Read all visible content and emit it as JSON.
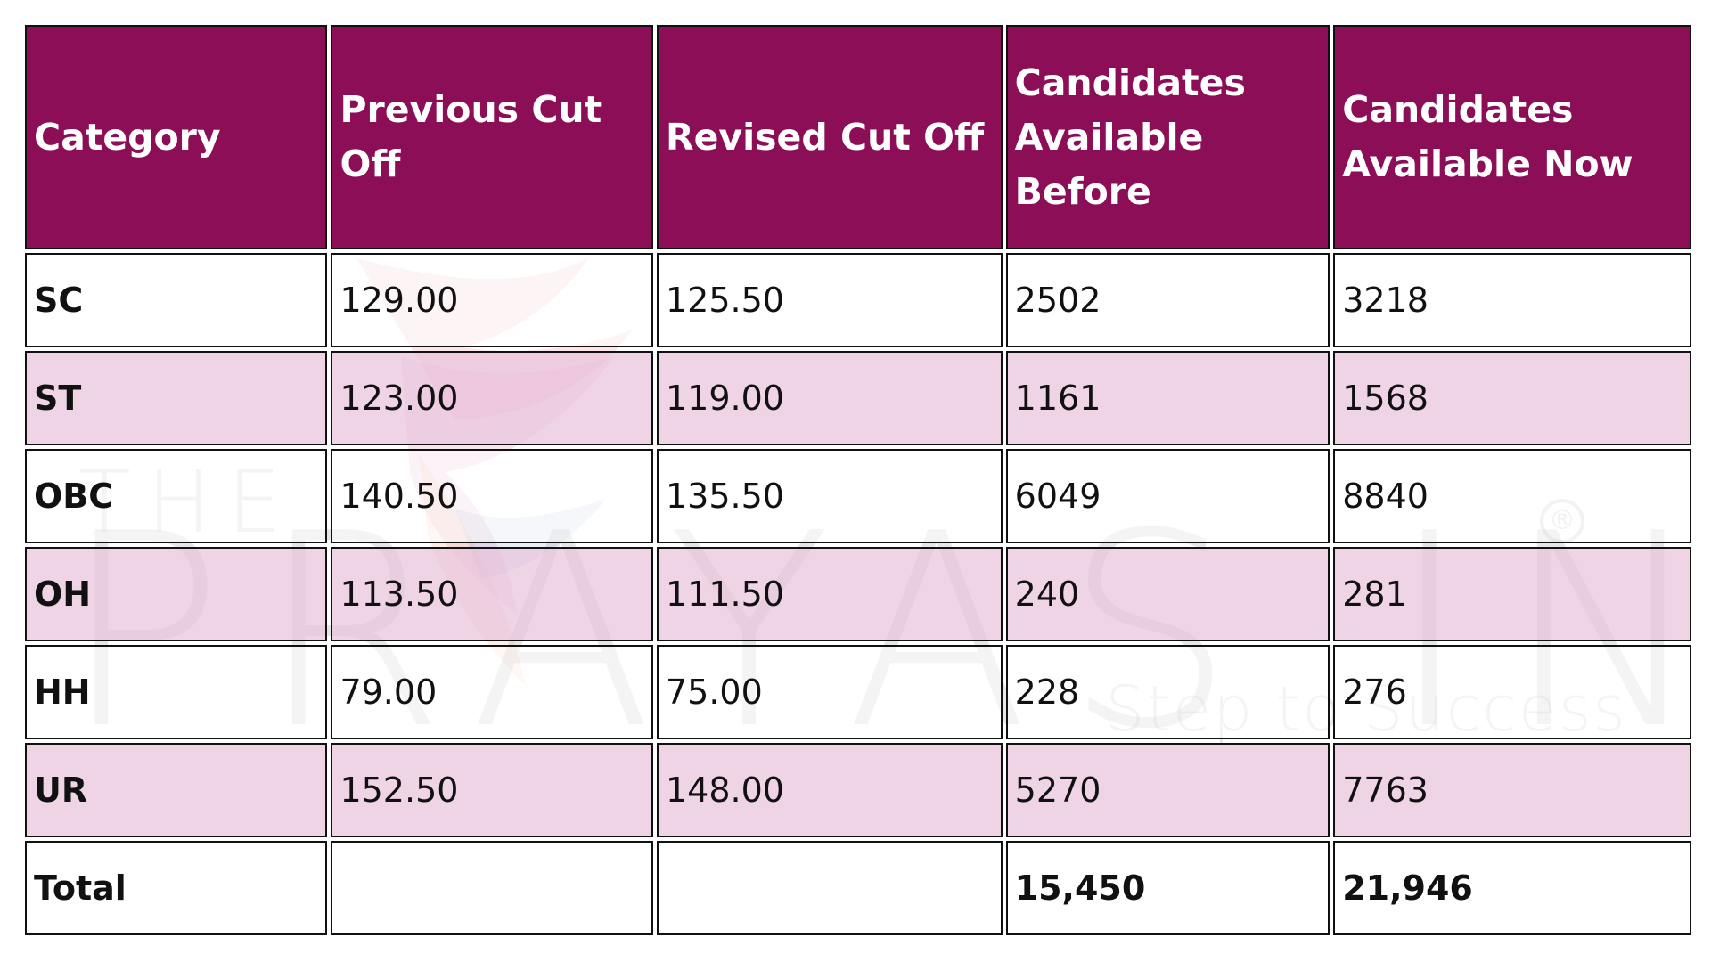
{
  "colors": {
    "header_bg": "#8b0e56",
    "header_text": "#ffffff",
    "alt_row_bg": "#eed3e4",
    "border": "#111111"
  },
  "watermark": {
    "the": "THE",
    "main": "PRAYAS INDIA",
    "registered": "®",
    "tagline": "Step to Success",
    "logo_icon": "bird-logo-icon"
  },
  "table": {
    "headers": [
      "Category",
      "Previous Cut Off",
      "Revised Cut Off",
      "Candidates Available Before",
      "Candidates Available Now"
    ],
    "rows": [
      {
        "category": "SC",
        "previous": "129.00",
        "revised": "125.50",
        "before": "2502",
        "now": "3218"
      },
      {
        "category": "ST",
        "previous": "123.00",
        "revised": "119.00",
        "before": "1161",
        "now": "1568"
      },
      {
        "category": "OBC",
        "previous": "140.50",
        "revised": "135.50",
        "before": "6049",
        "now": "8840"
      },
      {
        "category": "OH",
        "previous": "113.50",
        "revised": "111.50",
        "before": "240",
        "now": "281"
      },
      {
        "category": "HH",
        "previous": "79.00",
        "revised": "75.00",
        "before": "228",
        "now": "276"
      },
      {
        "category": "UR",
        "previous": "152.50",
        "revised": "148.00",
        "before": "5270",
        "now": "7763"
      }
    ],
    "total": {
      "label": "Total",
      "previous": "",
      "revised": "",
      "before": "15,450",
      "now": "21,946"
    }
  }
}
